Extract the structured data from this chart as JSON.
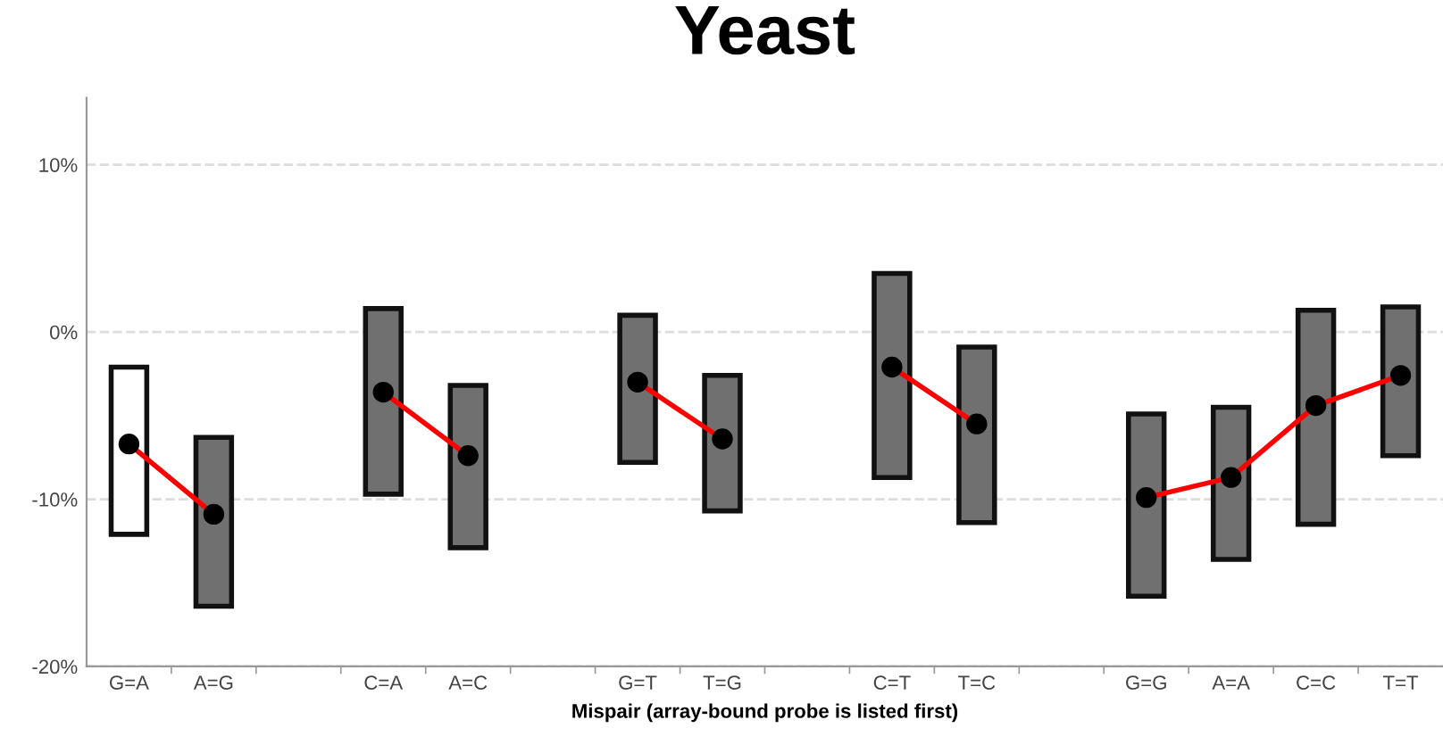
{
  "chart_data": {
    "type": "bar",
    "title": "Yeast",
    "xlabel": "Mispair (array-bound probe is listed first)",
    "categories": [
      "G=A",
      "A=G",
      null,
      "C=A",
      "A=C",
      null,
      "G=T",
      "T=G",
      null,
      "C=T",
      "T=C",
      null,
      "G=G",
      "A=A",
      "C=C",
      "T=T"
    ],
    "ylim": [
      -20,
      14
    ],
    "yticks": [
      {
        "value": -20,
        "label": "-20%"
      },
      {
        "value": -10,
        "label": "-10%"
      },
      {
        "value": 0,
        "label": "0%"
      },
      {
        "value": 10,
        "label": "10%"
      }
    ],
    "grid": "y",
    "series": [
      {
        "base": [
          -12.1,
          -16.4,
          null,
          -9.7,
          -12.9,
          null,
          -7.8,
          -10.7,
          null,
          -8.7,
          -11.4,
          null,
          -15.8,
          -13.6,
          -11.5,
          -7.4
        ],
        "values": [
          10.0,
          10.1,
          null,
          11.1,
          9.7,
          null,
          8.8,
          8.1,
          null,
          12.2,
          10.5,
          null,
          10.9,
          9.1,
          12.8,
          8.9
        ],
        "colors": [
          "#ffffff",
          "#707070",
          null,
          "#707070",
          "#707070",
          null,
          "#707070",
          "#707070",
          null,
          "#707070",
          "#707070",
          null,
          "#707070",
          "#707070",
          "#707070",
          "#707070"
        ]
      },
      {
        "type": "line",
        "color": "#ff0000",
        "values": [
          -6.7,
          -10.9,
          null,
          -3.6,
          -7.4,
          null,
          -3.0,
          -6.4,
          null,
          -2.1,
          -5.5,
          null,
          -9.9,
          -8.7,
          -4.4,
          -2.6
        ]
      },
      {
        "type": "scatter",
        "color": "#000000",
        "marker": "circle",
        "values": [
          -6.7,
          -10.9,
          null,
          -3.6,
          -7.4,
          null,
          -3.0,
          -6.4,
          null,
          -2.1,
          -5.5,
          null,
          -9.9,
          -8.7,
          -4.4,
          -2.6
        ]
      }
    ]
  }
}
